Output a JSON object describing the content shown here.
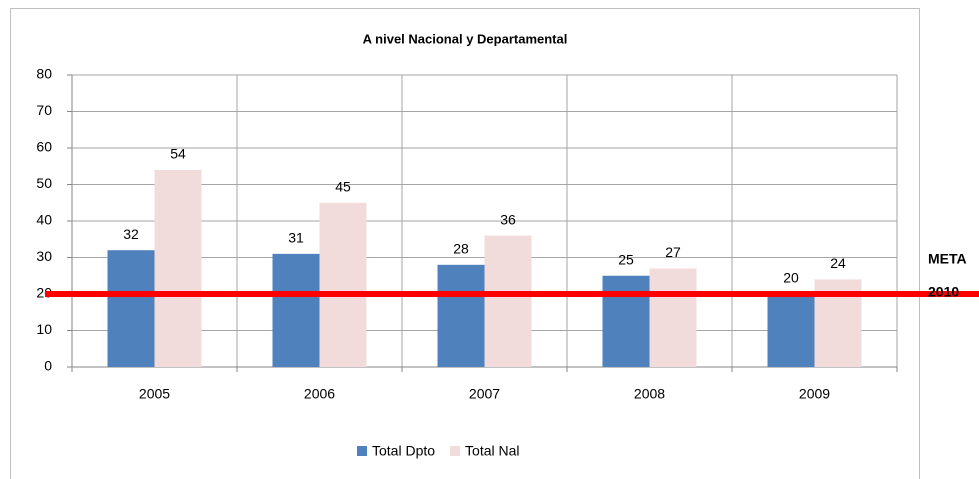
{
  "chart_data": {
    "type": "bar",
    "title": "A nivel Nacional y Departamental",
    "categories": [
      "2005",
      "2006",
      "2007",
      "2008",
      "2009"
    ],
    "series": [
      {
        "name": "Total Dpto",
        "color": "#4f81bd",
        "values": [
          32,
          31,
          28,
          25,
          20
        ]
      },
      {
        "name": "Total Nal",
        "color": "#f2dcdb",
        "values": [
          54,
          45,
          36,
          27,
          24
        ]
      }
    ],
    "ylim": [
      0,
      80
    ],
    "yticks": [
      0,
      10,
      20,
      30,
      40,
      50,
      60,
      70,
      80
    ],
    "grid": true,
    "legend": "bottom",
    "annotation": {
      "text": [
        "META",
        "2010"
      ],
      "value": 20,
      "color": "#ff0000"
    }
  }
}
